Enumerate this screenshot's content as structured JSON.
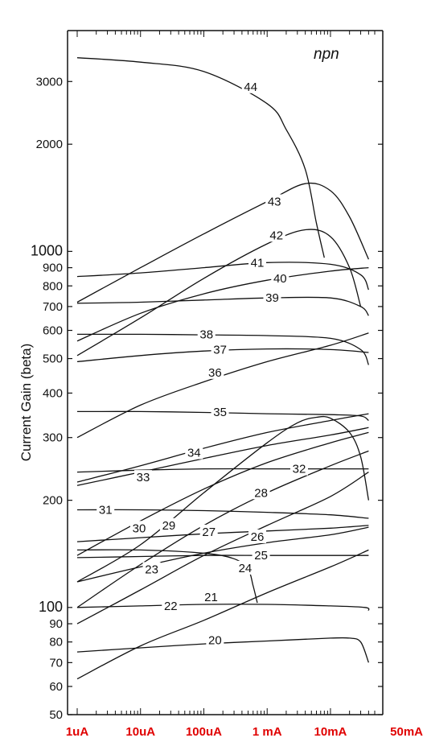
{
  "chart_data": {
    "type": "line",
    "ylabel": "Current Gain (beta)",
    "xlabel": "",
    "annotation": "npn",
    "y_scale": "log",
    "x_scale": "log",
    "ylim": [
      50,
      4000
    ],
    "xlim_amps": [
      1e-06,
      0.05
    ],
    "y_ticks": [
      {
        "value": 50,
        "label": "50"
      },
      {
        "value": 60,
        "label": "60"
      },
      {
        "value": 70,
        "label": "70"
      },
      {
        "value": 80,
        "label": "80"
      },
      {
        "value": 90,
        "label": "90"
      },
      {
        "value": 100,
        "label": "100"
      },
      {
        "value": 200,
        "label": "200"
      },
      {
        "value": 300,
        "label": "300"
      },
      {
        "value": 400,
        "label": "400"
      },
      {
        "value": 500,
        "label": "500"
      },
      {
        "value": 600,
        "label": "600"
      },
      {
        "value": 700,
        "label": "700"
      },
      {
        "value": 800,
        "label": "800"
      },
      {
        "value": 900,
        "label": "900"
      },
      {
        "value": 1000,
        "label": "1000"
      },
      {
        "value": 2000,
        "label": "2000"
      },
      {
        "value": 3000,
        "label": "3000"
      }
    ],
    "x_ticks": [
      {
        "value": 1e-06,
        "label": "1uA"
      },
      {
        "value": 1e-05,
        "label": "10uA"
      },
      {
        "value": 0.0001,
        "label": "100uA"
      },
      {
        "value": 0.001,
        "label": "1 mA"
      },
      {
        "value": 0.01,
        "label": "10mA"
      },
      {
        "value": 0.05,
        "label": "50mA"
      }
    ],
    "x_tick_color": "#e00000",
    "line_color": "#111111",
    "series": [
      {
        "name": "20",
        "x": [
          1e-06,
          1e-05,
          0.0001,
          0.001,
          0.01,
          0.02,
          0.03,
          0.04
        ],
        "y": [
          75,
          77,
          79,
          80.5,
          82,
          82,
          80,
          70
        ]
      },
      {
        "name": "21",
        "x": [
          1e-06,
          1e-05,
          0.0001,
          0.001,
          0.01,
          0.04
        ],
        "y": [
          63,
          78,
          92,
          110,
          130,
          145
        ]
      },
      {
        "name": "22",
        "x": [
          1e-06,
          1e-05,
          0.0001,
          0.001,
          0.01,
          0.035,
          0.04
        ],
        "y": [
          100,
          101,
          102,
          102,
          101,
          100,
          98
        ]
      },
      {
        "name": "23",
        "x": [
          1e-06,
          1e-05,
          0.0001,
          0.001,
          0.01,
          0.04
        ],
        "y": [
          90,
          112,
          140,
          170,
          205,
          240
        ]
      },
      {
        "name": "24",
        "x": [
          1e-06,
          1e-05,
          0.0001,
          0.0003,
          0.0005,
          0.0006,
          0.0007
        ],
        "y": [
          145,
          145,
          142,
          137,
          128,
          115,
          103
        ]
      },
      {
        "name": "25",
        "x": [
          1e-06,
          1e-05,
          0.0001,
          0.001,
          0.01,
          0.04
        ],
        "y": [
          138,
          139,
          140,
          140,
          140,
          140
        ]
      },
      {
        "name": "26",
        "x": [
          1e-06,
          1e-05,
          0.0001,
          0.001,
          0.01,
          0.04
        ],
        "y": [
          118,
          130,
          142,
          152,
          160,
          168
        ]
      },
      {
        "name": "27",
        "x": [
          1e-06,
          1e-05,
          0.0001,
          0.001,
          0.01,
          0.04
        ],
        "y": [
          153,
          157,
          161,
          164,
          167,
          170
        ]
      },
      {
        "name": "28",
        "x": [
          1e-06,
          1e-05,
          0.0001,
          0.001,
          0.01,
          0.04
        ],
        "y": [
          100,
          132,
          170,
          210,
          250,
          275
        ]
      },
      {
        "name": "29",
        "x": [
          1e-06,
          1e-05,
          0.0001,
          0.001,
          0.003,
          0.006,
          0.01,
          0.02,
          0.03,
          0.04
        ],
        "y": [
          118,
          150,
          210,
          290,
          330,
          342,
          340,
          310,
          265,
          200
        ]
      },
      {
        "name": "30",
        "x": [
          1e-06,
          1e-05,
          0.0001,
          0.001,
          0.01,
          0.04
        ],
        "y": [
          140,
          175,
          215,
          255,
          290,
          310
        ]
      },
      {
        "name": "31",
        "x": [
          1e-06,
          1e-05,
          0.0001,
          0.001,
          0.01,
          0.04
        ],
        "y": [
          188,
          188,
          187,
          185,
          182,
          178
        ]
      },
      {
        "name": "32",
        "x": [
          1e-06,
          1e-05,
          0.0001,
          0.001,
          0.01,
          0.04
        ],
        "y": [
          240,
          243,
          245,
          245,
          245,
          245
        ]
      },
      {
        "name": "33",
        "x": [
          1e-06,
          1e-05,
          0.0001,
          0.001,
          0.01,
          0.04
        ],
        "y": [
          220,
          240,
          262,
          285,
          305,
          320
        ]
      },
      {
        "name": "34",
        "x": [
          1e-06,
          1e-05,
          0.0001,
          0.001,
          0.01,
          0.04
        ],
        "y": [
          225,
          250,
          280,
          310,
          335,
          350
        ]
      },
      {
        "name": "35",
        "x": [
          1e-06,
          1e-05,
          0.0001,
          0.001,
          0.01,
          0.03,
          0.04
        ],
        "y": [
          355,
          355,
          353,
          350,
          348,
          345,
          335
        ]
      },
      {
        "name": "36",
        "x": [
          1e-06,
          1e-05,
          0.0001,
          0.001,
          0.01,
          0.04
        ],
        "y": [
          300,
          370,
          430,
          490,
          545,
          590
        ]
      },
      {
        "name": "37",
        "x": [
          1e-06,
          1e-05,
          0.0001,
          0.001,
          0.01,
          0.04
        ],
        "y": [
          490,
          510,
          525,
          532,
          530,
          520
        ]
      },
      {
        "name": "38",
        "x": [
          1e-06,
          1e-05,
          0.0001,
          0.001,
          0.01,
          0.03,
          0.04
        ],
        "y": [
          585,
          585,
          583,
          580,
          570,
          530,
          480
        ]
      },
      {
        "name": "39",
        "x": [
          1e-06,
          1e-05,
          0.0001,
          0.001,
          0.01,
          0.03,
          0.04
        ],
        "y": [
          715,
          720,
          730,
          740,
          740,
          700,
          660
        ]
      },
      {
        "name": "40",
        "x": [
          1e-06,
          1e-05,
          0.0001,
          0.001,
          0.01,
          0.04
        ],
        "y": [
          560,
          670,
          760,
          830,
          880,
          900
        ]
      },
      {
        "name": "41",
        "x": [
          1e-06,
          1e-05,
          0.0001,
          0.001,
          0.01,
          0.03,
          0.04
        ],
        "y": [
          850,
          870,
          900,
          930,
          920,
          860,
          780
        ]
      },
      {
        "name": "42",
        "x": [
          1e-06,
          1e-05,
          0.0001,
          0.001,
          0.004,
          0.01,
          0.02,
          0.03
        ],
        "y": [
          510,
          650,
          840,
          1050,
          1150,
          1100,
          900,
          700
        ]
      },
      {
        "name": "43",
        "x": [
          1e-06,
          1e-05,
          0.0001,
          0.001,
          0.004,
          0.01,
          0.02,
          0.04
        ],
        "y": [
          720,
          900,
          1120,
          1380,
          1550,
          1480,
          1250,
          950
        ]
      },
      {
        "name": "44",
        "x": [
          1e-06,
          1e-05,
          0.0001,
          0.001,
          0.002,
          0.004,
          0.006,
          0.008
        ],
        "y": [
          3500,
          3400,
          3200,
          2600,
          2200,
          1700,
          1200,
          960
        ]
      }
    ],
    "label_positions": [
      {
        "name": "20",
        "x": 0.00015,
        "y": 81
      },
      {
        "name": "21",
        "x": 0.00013,
        "y": 107
      },
      {
        "name": "22",
        "x": 3e-05,
        "y": 101
      },
      {
        "name": "23",
        "x": 1.5e-05,
        "y": 128
      },
      {
        "name": "24",
        "x": 0.00045,
        "y": 129
      },
      {
        "name": "25",
        "x": 0.0008,
        "y": 140
      },
      {
        "name": "26",
        "x": 0.0007,
        "y": 158
      },
      {
        "name": "27",
        "x": 0.00012,
        "y": 163
      },
      {
        "name": "28",
        "x": 0.0008,
        "y": 210
      },
      {
        "name": "29",
        "x": 2.8e-05,
        "y": 170
      },
      {
        "name": "30",
        "x": 9.5e-06,
        "y": 167
      },
      {
        "name": "31",
        "x": 2.8e-06,
        "y": 188
      },
      {
        "name": "32",
        "x": 0.0032,
        "y": 245
      },
      {
        "name": "33",
        "x": 1.1e-05,
        "y": 232
      },
      {
        "name": "34",
        "x": 7e-05,
        "y": 272
      },
      {
        "name": "35",
        "x": 0.00018,
        "y": 354
      },
      {
        "name": "36",
        "x": 0.00015,
        "y": 457
      },
      {
        "name": "37",
        "x": 0.00018,
        "y": 530
      },
      {
        "name": "38",
        "x": 0.00011,
        "y": 584
      },
      {
        "name": "39",
        "x": 0.0012,
        "y": 740
      },
      {
        "name": "40",
        "x": 0.0016,
        "y": 840
      },
      {
        "name": "41",
        "x": 0.0007,
        "y": 930
      },
      {
        "name": "42",
        "x": 0.0014,
        "y": 1110
      },
      {
        "name": "43",
        "x": 0.0013,
        "y": 1380
      },
      {
        "name": "44",
        "x": 0.00055,
        "y": 2900
      }
    ]
  }
}
